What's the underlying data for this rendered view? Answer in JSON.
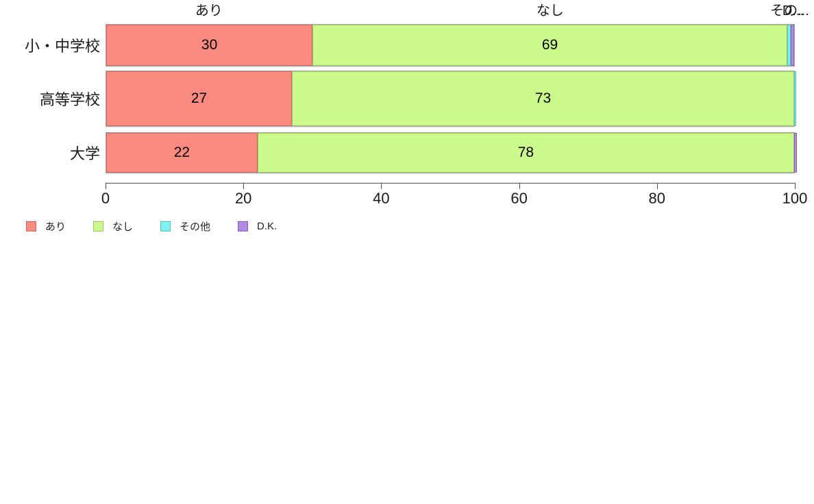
{
  "page": {
    "background_color": "#ffffff"
  },
  "chart_data": {
    "type": "bar",
    "orientation": "horizontal",
    "stacked": true,
    "title": "",
    "xlabel": "",
    "ylabel": "",
    "categories": [
      "小・中学校",
      "高等学校",
      "大学"
    ],
    "series": [
      {
        "name": "あり",
        "color": "#FB8A80",
        "border_color": "#C96961",
        "values": [
          30,
          27,
          22
        ]
      },
      {
        "name": "なし",
        "color": "#CCF98B",
        "border_color": "#9DC465",
        "values": [
          69,
          73,
          78
        ]
      },
      {
        "name": "その他",
        "color": "#80F1F1",
        "border_color": "#58BFBF",
        "values": [
          0.5,
          0.3,
          0
        ]
      },
      {
        "name": "D.K.",
        "color": "#B28AE6",
        "border_color": "#8463B3",
        "values": [
          0.5,
          0,
          0.4
        ]
      }
    ],
    "visible_bar_labels": [
      [
        30,
        69
      ],
      [
        27,
        73
      ],
      [
        22,
        78
      ]
    ],
    "column_headers": [
      "あり",
      "なし",
      "その...",
      "D..."
    ],
    "xlim": [
      0,
      100
    ],
    "x_ticks": [
      "0",
      "20",
      "40",
      "60",
      "80",
      "100"
    ],
    "grid": false,
    "legend": {
      "position": "bottom-left",
      "items": [
        "あり",
        "なし",
        "その他",
        "D.K."
      ]
    }
  }
}
